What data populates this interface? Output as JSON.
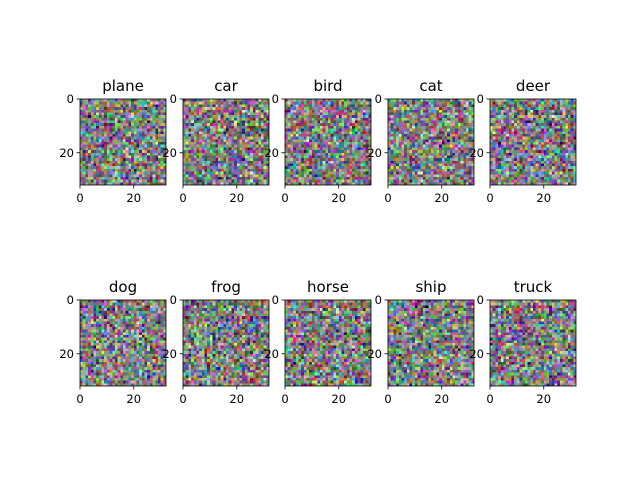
{
  "chart_data": {
    "type": "heatmap",
    "layout": {
      "rows": 2,
      "cols": 5
    },
    "panels": [
      {
        "title": "plane",
        "xticks": [
          "0",
          "20"
        ],
        "yticks": [
          "0",
          "20"
        ],
        "xlim": [
          0,
          32
        ],
        "ylim": [
          32,
          0
        ]
      },
      {
        "title": "car",
        "xticks": [
          "0",
          "20"
        ],
        "yticks": [
          "0",
          "20"
        ],
        "xlim": [
          0,
          32
        ],
        "ylim": [
          32,
          0
        ]
      },
      {
        "title": "bird",
        "xticks": [
          "0",
          "20"
        ],
        "yticks": [
          "0",
          "20"
        ],
        "xlim": [
          0,
          32
        ],
        "ylim": [
          32,
          0
        ]
      },
      {
        "title": "cat",
        "xticks": [
          "0",
          "20"
        ],
        "yticks": [
          "0",
          "20"
        ],
        "xlim": [
          0,
          32
        ],
        "ylim": [
          32,
          0
        ]
      },
      {
        "title": "deer",
        "xticks": [
          "0",
          "20"
        ],
        "yticks": [
          "0",
          "20"
        ],
        "xlim": [
          0,
          32
        ],
        "ylim": [
          32,
          0
        ]
      },
      {
        "title": "dog",
        "xticks": [
          "0",
          "20"
        ],
        "yticks": [
          "0",
          "20"
        ],
        "xlim": [
          0,
          32
        ],
        "ylim": [
          32,
          0
        ]
      },
      {
        "title": "frog",
        "xticks": [
          "0",
          "20"
        ],
        "yticks": [
          "0",
          "20"
        ],
        "xlim": [
          0,
          32
        ],
        "ylim": [
          32,
          0
        ]
      },
      {
        "title": "horse",
        "xticks": [
          "0",
          "20"
        ],
        "yticks": [
          "0",
          "20"
        ],
        "xlim": [
          0,
          32
        ],
        "ylim": [
          32,
          0
        ]
      },
      {
        "title": "ship",
        "xticks": [
          "0",
          "20"
        ],
        "yticks": [
          "0",
          "20"
        ],
        "xlim": [
          0,
          32
        ],
        "ylim": [
          32,
          0
        ]
      },
      {
        "title": "truck",
        "xticks": [
          "0",
          "20"
        ],
        "yticks": [
          "0",
          "20"
        ],
        "xlim": [
          0,
          32
        ],
        "ylim": [
          32,
          0
        ]
      }
    ],
    "image_size": [
      32,
      32
    ],
    "content": "random noise RGB pixels",
    "colors": {
      "axis": "#000000",
      "background": "#ffffff"
    }
  }
}
